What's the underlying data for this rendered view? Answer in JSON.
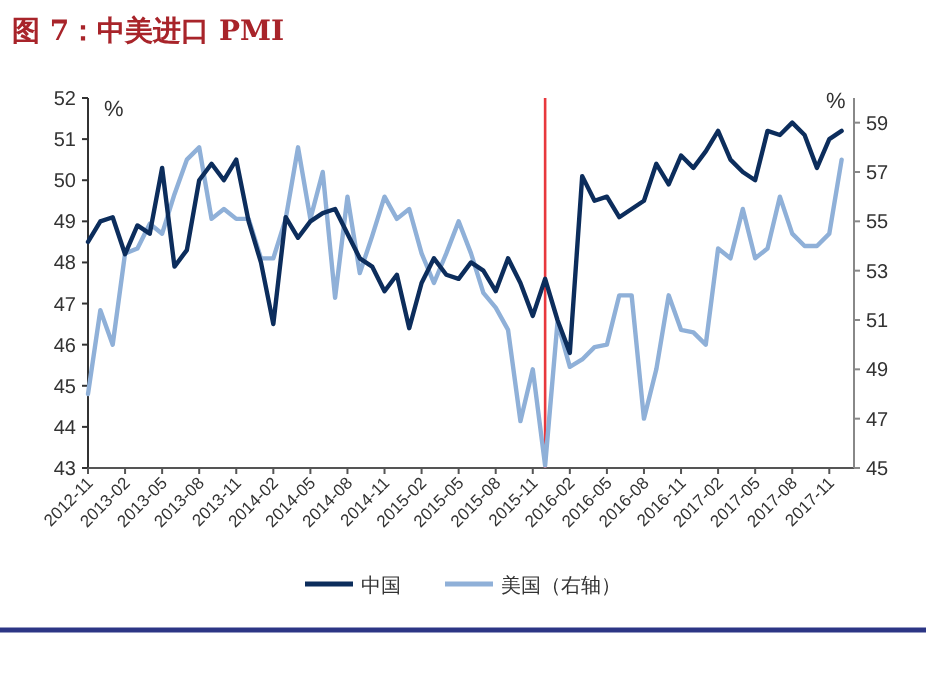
{
  "chart_data": {
    "type": "line",
    "title": "图 7：中美进口 PMI",
    "ylabel": "%",
    "y2label": "%",
    "x": [
      "2012-11",
      "2012-12",
      "2013-01",
      "2013-02",
      "2013-03",
      "2013-04",
      "2013-05",
      "2013-06",
      "2013-07",
      "2013-08",
      "2013-09",
      "2013-10",
      "2013-11",
      "2013-12",
      "2014-01",
      "2014-02",
      "2014-03",
      "2014-04",
      "2014-05",
      "2014-06",
      "2014-07",
      "2014-08",
      "2014-09",
      "2014-10",
      "2014-11",
      "2014-12",
      "2015-01",
      "2015-02",
      "2015-03",
      "2015-04",
      "2015-05",
      "2015-06",
      "2015-07",
      "2015-08",
      "2015-09",
      "2015-10",
      "2015-11",
      "2015-12",
      "2016-01",
      "2016-02",
      "2016-03",
      "2016-04",
      "2016-05",
      "2016-06",
      "2016-07",
      "2016-08",
      "2016-09",
      "2016-10",
      "2016-11",
      "2016-12",
      "2017-01",
      "2017-02",
      "2017-03",
      "2017-04",
      "2017-05",
      "2017-06",
      "2017-07",
      "2017-08",
      "2017-09",
      "2017-10",
      "2017-11",
      "2017-12"
    ],
    "series": [
      {
        "name": "中国",
        "color": "#0c2d5c",
        "values": [
          48.5,
          49.0,
          49.1,
          48.2,
          48.9,
          48.7,
          50.3,
          47.9,
          48.3,
          50.0,
          50.4,
          50.0,
          50.5,
          49.0,
          48.0,
          46.5,
          49.1,
          48.6,
          49.0,
          49.2,
          49.3,
          48.7,
          48.1,
          47.9,
          47.3,
          47.7,
          46.4,
          47.5,
          48.1,
          47.7,
          47.6,
          48.0,
          47.8,
          47.3,
          48.1,
          47.5,
          46.7,
          47.6,
          46.6,
          45.8,
          50.1,
          49.5,
          49.6,
          49.1,
          49.3,
          49.5,
          50.4,
          49.9,
          50.6,
          50.3,
          50.7,
          51.2,
          50.5,
          50.2,
          50.0,
          51.2,
          51.1,
          51.4,
          51.1,
          50.3,
          51.0,
          51.2
        ]
      },
      {
        "name": "美国（右轴）",
        "color": "#8fb0d8",
        "axis": "y2",
        "values": [
          48.0,
          51.4,
          50.0,
          53.7,
          53.9,
          54.9,
          54.5,
          56.1,
          57.5,
          58.0,
          55.1,
          55.5,
          55.1,
          55.1,
          53.5,
          53.5,
          55.1,
          58.0,
          55.1,
          57.0,
          51.9,
          56.0,
          52.9,
          54.4,
          56.0,
          55.1,
          55.5,
          53.7,
          52.5,
          53.7,
          55.0,
          53.7,
          52.1,
          51.5,
          50.6,
          46.9,
          49.0,
          45.1,
          50.9,
          49.1,
          49.4,
          49.9,
          50.0,
          52.0,
          52.0,
          47.0,
          49.0,
          52.0,
          50.6,
          50.5,
          50.0,
          53.9,
          53.5,
          55.5,
          53.5,
          53.9,
          56.0,
          54.5,
          54.0,
          54.0,
          54.5,
          57.5
        ]
      }
    ],
    "xlim": [
      "2012-11",
      "2018-01"
    ],
    "xticks": [
      "2012-11",
      "2013-02",
      "2013-05",
      "2013-08",
      "2013-11",
      "2014-02",
      "2014-05",
      "2014-08",
      "2014-11",
      "2015-02",
      "2015-05",
      "2015-08",
      "2015-11",
      "2016-02",
      "2016-05",
      "2016-08",
      "2016-11",
      "2017-02",
      "2017-05",
      "2017-08",
      "2017-11"
    ],
    "ylim": [
      43,
      52
    ],
    "yticks": [
      43,
      44,
      45,
      46,
      47,
      48,
      49,
      50,
      51,
      52
    ],
    "y2lim": [
      45,
      60
    ],
    "y2ticks": [
      45,
      47,
      49,
      51,
      53,
      55,
      57,
      59
    ],
    "ref_lines": [
      {
        "axis": "x",
        "value": "2015-12",
        "color": "#e8383d"
      }
    ],
    "legend": "bottom",
    "grid": false,
    "marker": "none",
    "line_style": "solid"
  }
}
